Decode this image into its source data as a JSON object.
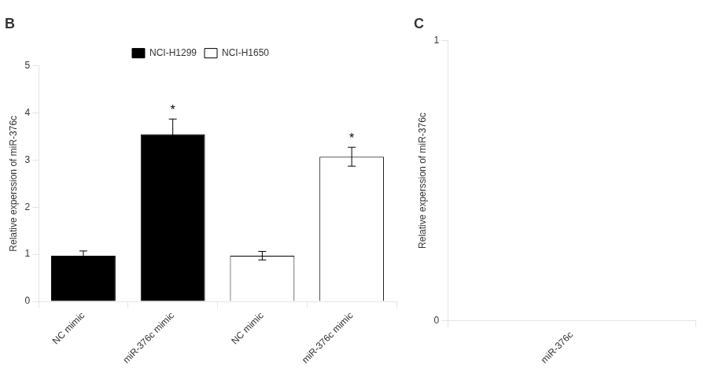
{
  "chart_data": [
    {
      "type": "bar",
      "title": "B",
      "ylabel": "Relative experssion of miR-376c",
      "categories": [
        "NC mimic",
        "miR-376c mimic",
        "NC mimic",
        "miR-376c mimic"
      ],
      "series": [
        {
          "name": "NCI-H1299",
          "color": "#000000",
          "values": [
            0.97,
            3.55,
            null,
            null
          ],
          "errors": [
            0.1,
            0.32,
            null,
            null
          ]
        },
        {
          "name": "NCI-H1650",
          "color": "#ffffff",
          "values": [
            null,
            null,
            0.97,
            3.07
          ],
          "errors": [
            null,
            null,
            0.09,
            0.2
          ]
        }
      ],
      "annotations": [
        {
          "text": "*",
          "series": "NCI-H1299",
          "index": 1
        },
        {
          "text": "*",
          "series": "NCI-H1650",
          "index": 3
        }
      ],
      "ylim": [
        0,
        5
      ],
      "yticks": [
        0,
        1,
        2,
        3,
        4,
        5
      ],
      "grid": false,
      "legend": "top"
    },
    {
      "type": "bar",
      "title": "C",
      "ylabel": "Relative experssion of miR-376c",
      "categories": [
        "miR-376c"
      ],
      "values": [
        null
      ],
      "ylim": [
        0,
        1
      ],
      "yticks": [
        0,
        1
      ],
      "grid": false
    }
  ]
}
